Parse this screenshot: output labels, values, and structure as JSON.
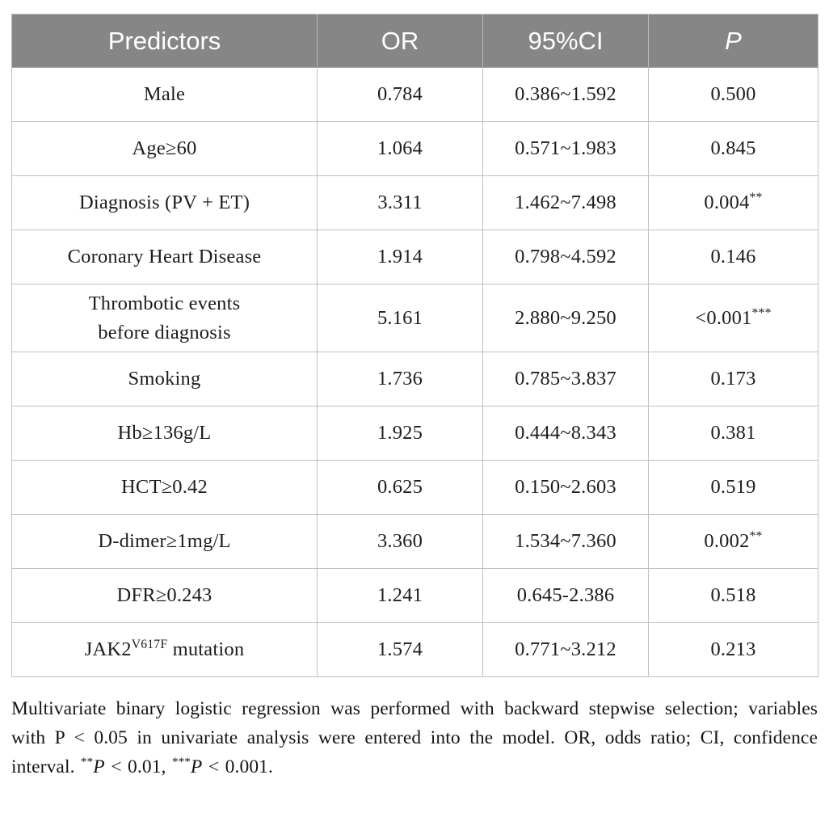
{
  "colors": {
    "header_bg": "#868686",
    "header_text": "#ffffff",
    "cell_border": "#c0c0c0",
    "body_text": "#1d1d1d"
  },
  "table": {
    "headers": [
      "Predictors",
      "OR",
      "95%CI",
      "P"
    ],
    "rows": [
      {
        "predictor": "Male",
        "predictor_sup": "",
        "predictor_post": "",
        "or": "0.784",
        "ci": "0.386~1.592",
        "p": "0.500",
        "p_sup": ""
      },
      {
        "predictor": "Age≥60",
        "predictor_sup": "",
        "predictor_post": "",
        "or": "1.064",
        "ci": "0.571~1.983",
        "p": "0.845",
        "p_sup": ""
      },
      {
        "predictor": "Diagnosis (PV + ET)",
        "predictor_sup": "",
        "predictor_post": "",
        "or": "3.311",
        "ci": "1.462~7.498",
        "p": "0.004",
        "p_sup": "**"
      },
      {
        "predictor": "Coronary Heart Disease",
        "predictor_sup": "",
        "predictor_post": "",
        "or": "1.914",
        "ci": "0.798~4.592",
        "p": "0.146",
        "p_sup": ""
      },
      {
        "predictor": "Thrombotic events\nbefore diagnosis",
        "predictor_sup": "",
        "predictor_post": "",
        "or": "5.161",
        "ci": "2.880~9.250",
        "p": "<0.001",
        "p_sup": "***"
      },
      {
        "predictor": "Smoking",
        "predictor_sup": "",
        "predictor_post": "",
        "or": "1.736",
        "ci": "0.785~3.837",
        "p": "0.173",
        "p_sup": ""
      },
      {
        "predictor": "Hb≥136g/L",
        "predictor_sup": "",
        "predictor_post": "",
        "or": "1.925",
        "ci": "0.444~8.343",
        "p": "0.381",
        "p_sup": ""
      },
      {
        "predictor": "HCT≥0.42",
        "predictor_sup": "",
        "predictor_post": "",
        "or": "0.625",
        "ci": "0.150~2.603",
        "p": "0.519",
        "p_sup": ""
      },
      {
        "predictor": "D-dimer≥1mg/L",
        "predictor_sup": "",
        "predictor_post": "",
        "or": "3.360",
        "ci": "1.534~7.360",
        "p": "0.002",
        "p_sup": "**"
      },
      {
        "predictor": "DFR≥0.243",
        "predictor_sup": "",
        "predictor_post": "",
        "or": "1.241",
        "ci": "0.645-2.386",
        "p": "0.518",
        "p_sup": ""
      },
      {
        "predictor": "JAK2",
        "predictor_sup": "V617F",
        "predictor_post": " mutation",
        "or": "1.574",
        "ci": "0.771~3.212",
        "p": "0.213",
        "p_sup": ""
      }
    ]
  },
  "footnote": {
    "text_main": "Multivariate binary logistic regression was performed with backward stepwise selection; variables with P < 0.05 in univariate analysis were entered into the model. OR, odds ratio; CI, confidence interval. ",
    "sig1_stars": "**",
    "sig1_p": "P",
    "sig1_rest": " < 0.01, ",
    "sig2_stars": "***",
    "sig2_p": "P",
    "sig2_rest": " < 0.001."
  }
}
